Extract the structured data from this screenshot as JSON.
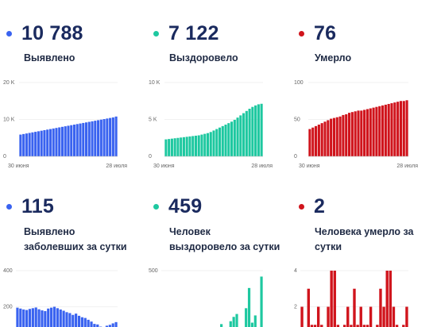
{
  "colors": {
    "blue": "#3a63f0",
    "green": "#1ec8a0",
    "red": "#d0141c",
    "text": "#1a2a5e"
  },
  "stats": [
    {
      "value": "10 788",
      "label": "Выявлено",
      "color": "#3a63f0"
    },
    {
      "value": "7 122",
      "label": "Выздоровело",
      "color": "#1ec8a0"
    },
    {
      "value": "76",
      "label": "Умерло",
      "color": "#d0141c"
    },
    {
      "value": "115",
      "label": "Выявлено заболевших за сутки",
      "color": "#3a63f0"
    },
    {
      "value": "459",
      "label": "Человек выздоровело за сутки",
      "color": "#1ec8a0"
    },
    {
      "value": "2",
      "label": "Человека умерло за сутки",
      "color": "#d0141c"
    }
  ],
  "chart_data": [
    {
      "type": "bar",
      "color": "#3a63f0",
      "ylim": [
        0,
        20000
      ],
      "yticks": [
        "20 K",
        "10 K",
        "0"
      ],
      "ytick_values": [
        20000,
        10000,
        0
      ],
      "x_tick_labels": [
        "30 июня",
        "28 июля"
      ],
      "values": [
        5900,
        6050,
        6200,
        6350,
        6500,
        6650,
        6800,
        6950,
        7100,
        7250,
        7400,
        7550,
        7700,
        7850,
        8000,
        8150,
        8300,
        8450,
        8600,
        8750,
        8900,
        9050,
        9200,
        9350,
        9500,
        9650,
        9800,
        9950,
        10100,
        10250,
        10400,
        10550,
        10788
      ]
    },
    {
      "type": "bar",
      "color": "#1ec8a0",
      "ylim": [
        0,
        10000
      ],
      "yticks": [
        "10 K",
        "5 K",
        "0"
      ],
      "ytick_values": [
        10000,
        5000,
        0
      ],
      "x_tick_labels": [
        "30 июня",
        "28 июля"
      ],
      "values": [
        2300,
        2350,
        2400,
        2450,
        2500,
        2550,
        2600,
        2650,
        2700,
        2750,
        2800,
        2850,
        2950,
        3050,
        3150,
        3300,
        3500,
        3700,
        3900,
        4100,
        4300,
        4500,
        4700,
        4950,
        5250,
        5550,
        5850,
        6150,
        6450,
        6700,
        6900,
        7050,
        7122
      ]
    },
    {
      "type": "bar",
      "color": "#d0141c",
      "ylim": [
        0,
        100
      ],
      "yticks": [
        "100",
        "50",
        "0"
      ],
      "ytick_values": [
        100,
        50,
        0
      ],
      "x_tick_labels": [
        "30 июня",
        "28 июля"
      ],
      "values": [
        37,
        39,
        41,
        43,
        45,
        47,
        49,
        51,
        52,
        53,
        54,
        56,
        57,
        59,
        60,
        61,
        62,
        62,
        63,
        64,
        65,
        66,
        67,
        68,
        69,
        70,
        71,
        72,
        73,
        74,
        75,
        75,
        76
      ]
    },
    {
      "type": "bar",
      "color": "#3a63f0",
      "ylim": [
        0,
        400
      ],
      "yticks": [
        "400",
        "200"
      ],
      "ytick_values": [
        400,
        200
      ],
      "values": [
        195,
        190,
        185,
        182,
        188,
        192,
        196,
        186,
        180,
        176,
        190,
        195,
        200,
        192,
        185,
        178,
        170,
        165,
        155,
        162,
        150,
        142,
        138,
        128,
        118,
        105,
        102,
        90,
        88,
        95,
        100,
        108,
        115
      ]
    },
    {
      "type": "bar",
      "color": "#1ec8a0",
      "ylim": [
        0,
        500
      ],
      "yticks": [
        "500"
      ],
      "ytick_values": [
        500
      ],
      "values": [
        0,
        0,
        0,
        0,
        0,
        0,
        0,
        0,
        0,
        0,
        0,
        0,
        0,
        0,
        0,
        0,
        40,
        60,
        90,
        130,
        110,
        70,
        150,
        180,
        200,
        80,
        110,
        240,
        380,
        140,
        190,
        40,
        459
      ]
    },
    {
      "type": "bar",
      "color": "#d0141c",
      "ylim": [
        0,
        4
      ],
      "yticks": [
        "4",
        "2"
      ],
      "ytick_values": [
        4,
        2
      ],
      "values": [
        2,
        0,
        3,
        1,
        1,
        2,
        1,
        0,
        2,
        4,
        4,
        1,
        0,
        1,
        2,
        1,
        3,
        1,
        2,
        1,
        1,
        2,
        0,
        1,
        3,
        2,
        4,
        4,
        2,
        1,
        0,
        1,
        2
      ]
    }
  ]
}
